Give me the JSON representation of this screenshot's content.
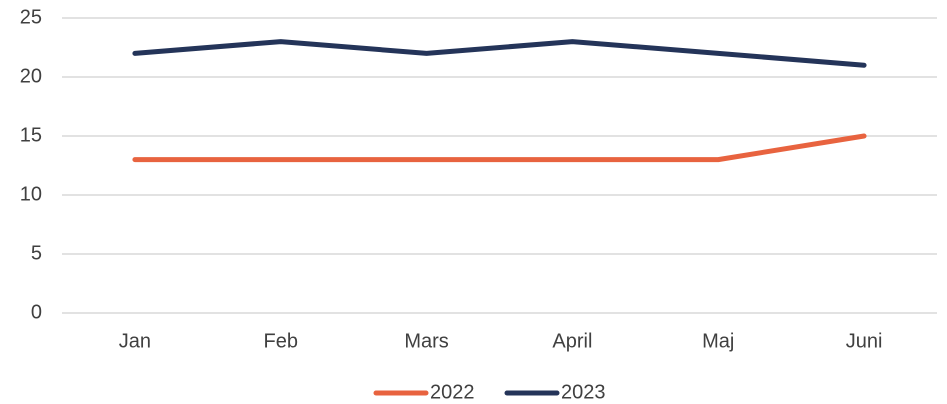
{
  "chart_data": {
    "type": "line",
    "categories": [
      "Jan",
      "Feb",
      "Mars",
      "April",
      "Maj",
      "Juni"
    ],
    "series": [
      {
        "name": "2022",
        "color": "#e8633f",
        "values": [
          13,
          13,
          13,
          13,
          13,
          15
        ]
      },
      {
        "name": "2023",
        "color": "#243459",
        "values": [
          22,
          23,
          22,
          23,
          22,
          21
        ]
      }
    ],
    "ylim": [
      0,
      25
    ],
    "yticks": [
      0,
      5,
      10,
      15,
      20,
      25
    ],
    "grid": true,
    "legend": "bottom"
  }
}
